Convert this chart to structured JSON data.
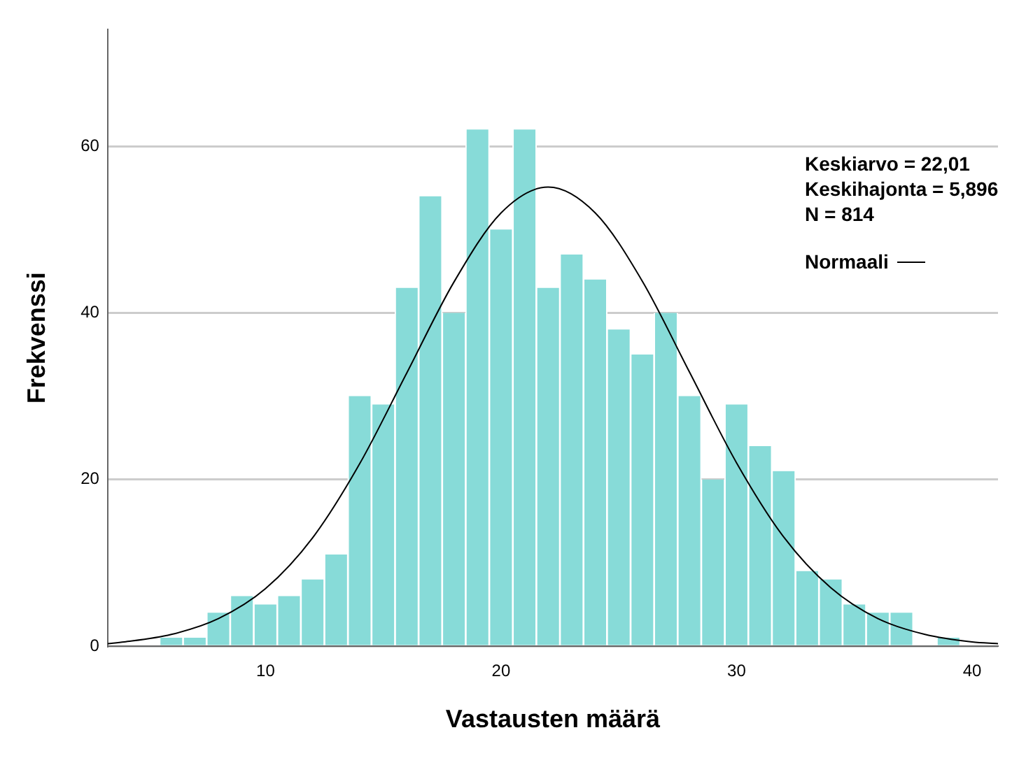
{
  "chart_data": {
    "type": "histogram",
    "xlabel": "Vastausten määrä",
    "ylabel": "Frekvenssi",
    "bins": [
      5.5,
      6.5,
      7.5,
      8.5,
      9.5,
      10.5,
      11.5,
      12.5,
      13.5,
      14.5,
      15.5,
      16.5,
      17.5,
      18.5,
      19.5,
      20.5,
      21.5,
      22.5,
      23.5,
      24.5,
      25.5,
      26.5,
      27.5,
      28.5,
      29.5,
      30.5,
      31.5,
      32.5,
      33.5,
      34.5,
      35.5,
      36.5,
      37.5,
      38.5,
      39.5
    ],
    "values": [
      1,
      1,
      4,
      6,
      5,
      6,
      8,
      11,
      30,
      29,
      43,
      54,
      40,
      62,
      50,
      62,
      43,
      47,
      44,
      38,
      35,
      40,
      30,
      20,
      29,
      24,
      21,
      9,
      8,
      5,
      4,
      4,
      0,
      1
    ],
    "color": "#87dbd8",
    "series": [
      {
        "type": "line",
        "name": "Normaali",
        "color": "#000000",
        "x": [
          3.3,
          4,
          6,
          8,
          10,
          12,
          14,
          16,
          18,
          20,
          22,
          24,
          26,
          28,
          30,
          32,
          34,
          36,
          38,
          40,
          41.1
        ],
        "values": [
          0.3,
          0.5,
          1.4,
          3.3,
          6.9,
          13,
          21.9,
          32.8,
          43.7,
          52,
          55.1,
          52,
          43.8,
          32.9,
          22,
          13.1,
          7,
          3.3,
          1.4,
          0.5,
          0.3
        ]
      }
    ],
    "annotations": [
      "Keskiarvo = 22,01",
      "Keskihajonta = 5,896",
      "N = 814"
    ],
    "xlim": [
      3.3,
      41.1
    ],
    "ylim": [
      0,
      74
    ],
    "xticks": [
      10,
      20,
      30,
      40
    ],
    "yticks": [
      0,
      20,
      40,
      60
    ],
    "grid": "y",
    "legend": "top right",
    "marker": "none",
    "line_style": "solid"
  }
}
